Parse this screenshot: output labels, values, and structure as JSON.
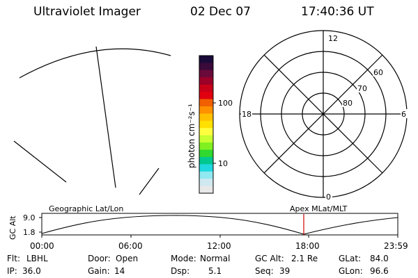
{
  "header": {
    "instrument": "Ultraviolet Imager",
    "date": "02 Dec 07",
    "time": "17:40:36 UT"
  },
  "colorbar": {
    "unit_label": "photon cm⁻²s⁻¹",
    "tick_labels": [
      "100",
      "10"
    ],
    "colors": [
      "#1a0a3a",
      "#3a0a3a",
      "#6a0a3a",
      "#9a0028",
      "#c80018",
      "#e00010",
      "#f06000",
      "#ff9000",
      "#ffc000",
      "#ffe000",
      "#ffff40",
      "#c8ff30",
      "#80f020",
      "#30d830",
      "#00c890",
      "#20d8e0",
      "#90e8f0",
      "#d0e8f0",
      "#e8e8e8"
    ]
  },
  "polar_plot": {
    "mlt_labels": [
      "12",
      "18",
      "6",
      "0"
    ],
    "mlat_labels": [
      "60",
      "70",
      "80"
    ]
  },
  "timeline": {
    "y_axis_label": "GC Alt",
    "y_ticks": [
      "9.0",
      "1.8"
    ],
    "geo_label": "Geographic Lat/Lon",
    "apex_label": "Apex  MLat/MLT",
    "x_ticks": [
      "00:00",
      "06:00",
      "12:00",
      "18:00",
      "23:59"
    ],
    "current_time_marker_color": "#cc0000"
  },
  "footer": {
    "row1": [
      {
        "key": "Flt:",
        "value": "LBHL"
      },
      {
        "key": "Door:",
        "value": "Open"
      },
      {
        "key": "Mode:",
        "value": "Normal"
      },
      {
        "key": "GC Alt:",
        "value": "2.1 Re"
      },
      {
        "key": "GLat:",
        "value": "84.0"
      }
    ],
    "row2": [
      {
        "key": "IP:",
        "value": "36.0"
      },
      {
        "key": "Gain:",
        "value": "14"
      },
      {
        "key": "Dsp:",
        "value": "5.1"
      },
      {
        "key": "Seq:",
        "value": "39"
      },
      {
        "key": "GLon:",
        "value": "96.6"
      }
    ]
  }
}
